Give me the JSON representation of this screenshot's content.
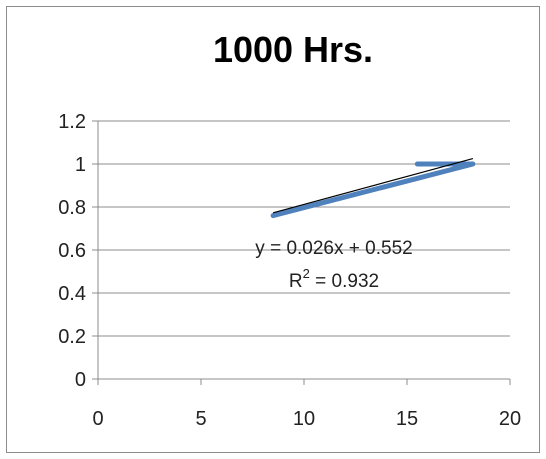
{
  "chart_data": {
    "type": "line",
    "title": "1000 Hrs.",
    "xlabel": "",
    "ylabel": "",
    "xlim": [
      0,
      20
    ],
    "ylim": [
      0,
      1.2
    ],
    "x_ticks": [
      0,
      5,
      10,
      15,
      20
    ],
    "y_ticks": [
      0,
      0.2,
      0.4,
      0.6,
      0.8,
      1,
      1.2
    ],
    "x_tick_labels": [
      "0",
      "5",
      "10",
      "15",
      "20"
    ],
    "y_tick_labels": [
      "0",
      "0.2",
      "0.4",
      "0.6",
      "0.8",
      "1",
      "1.2"
    ],
    "grid": "horizontal",
    "legend": "none",
    "series": [
      {
        "color": "#4f81bd",
        "points": [
          {
            "x": 8.5,
            "y": 0.76
          },
          {
            "x": 18.2,
            "y": 1.0
          },
          {
            "x": 15.5,
            "y": 1.0
          }
        ]
      }
    ],
    "trendline": {
      "type": "linear",
      "slope": 0.026,
      "intercept": 0.552,
      "x_range": [
        8.5,
        18.2
      ],
      "color": "#000000",
      "equation": "y = 0.026x + 0.552",
      "r2_label": "R",
      "r2_sup": "2",
      "r2_value": " = 0.932"
    }
  }
}
